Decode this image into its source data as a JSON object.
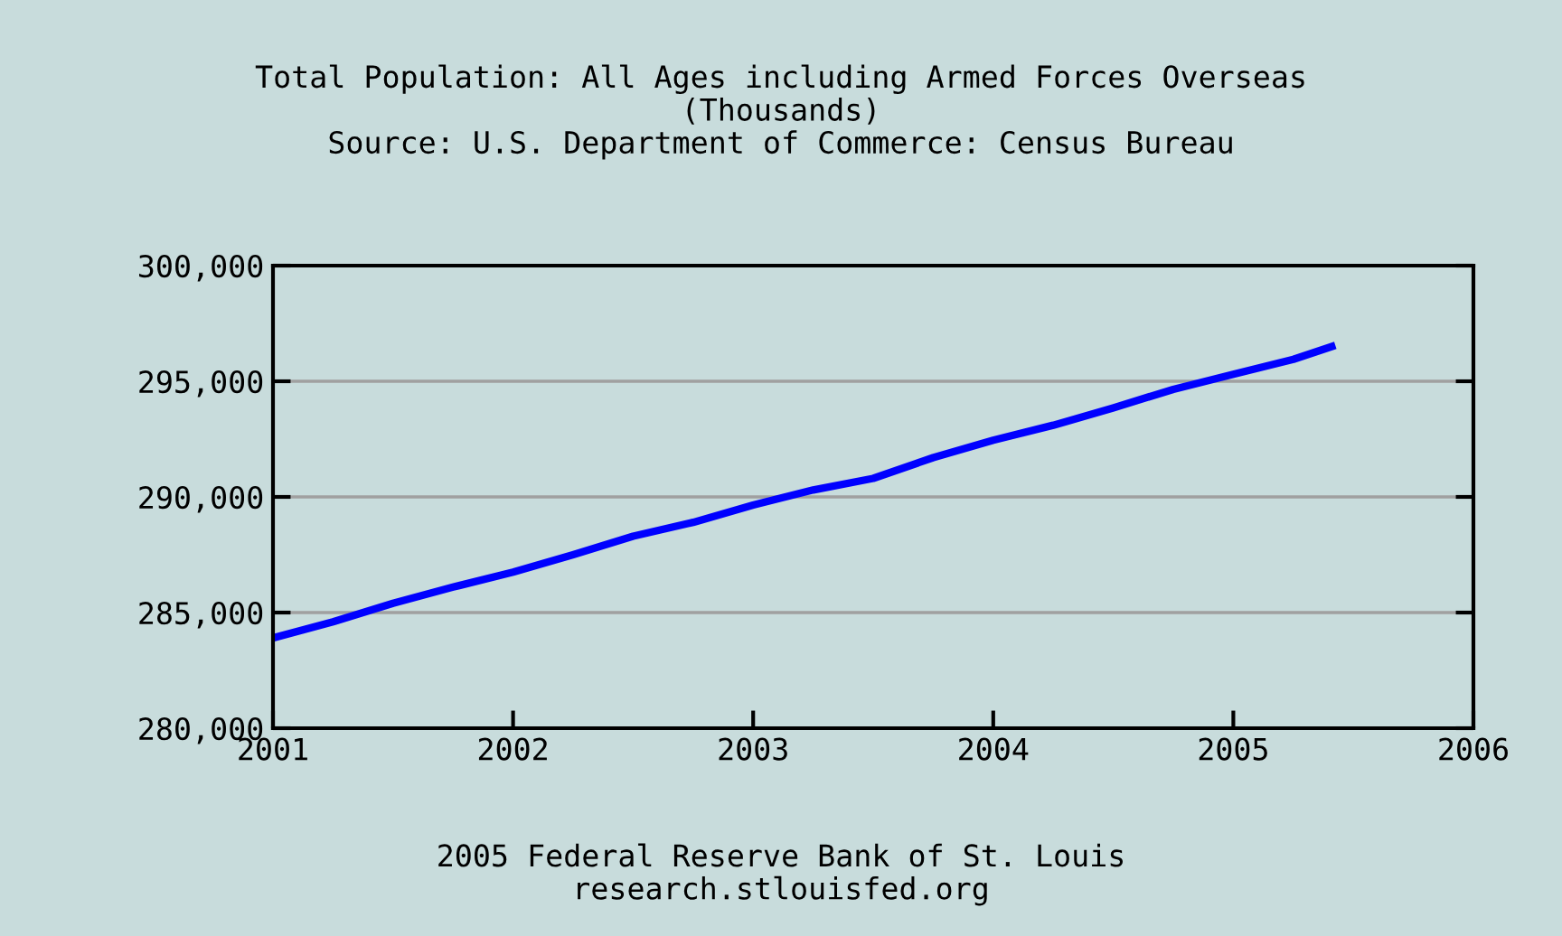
{
  "chart_data": {
    "type": "line",
    "title": "Total Population: All Ages including Armed Forces Overseas\n(Thousands)\nSource: U.S. Department of Commerce: Census Bureau",
    "x": [
      2001.0,
      2001.25,
      2001.5,
      2001.75,
      2002.0,
      2002.25,
      2002.5,
      2002.75,
      2003.0,
      2003.25,
      2003.5,
      2003.75,
      2004.0,
      2004.25,
      2004.5,
      2004.75,
      2005.0,
      2005.25,
      2005.41
    ],
    "series": [
      {
        "color": "#0000ff",
        "values": [
          283900,
          284600,
          285400,
          286100,
          286750,
          287500,
          288300,
          288900,
          289650,
          290300,
          290800,
          291700,
          292450,
          293100,
          293850,
          294650,
          295300,
          295950,
          296500
        ]
      }
    ],
    "xlim": [
      2001,
      2006
    ],
    "xticks": [
      2001,
      2002,
      2003,
      2004,
      2005,
      2006
    ],
    "ylim": [
      280000,
      300000
    ],
    "yticks": [
      {
        "value": 280000,
        "label": "280,000"
      },
      {
        "value": 285000,
        "label": "285,000"
      },
      {
        "value": 290000,
        "label": "290,000"
      },
      {
        "value": 295000,
        "label": "295,000"
      },
      {
        "value": 300000,
        "label": "300,000"
      }
    ],
    "grid": "y",
    "marker": "none",
    "line_style": "solid",
    "annotations": [
      "2005 Federal Reserve Bank of St. Louis\nresearch.stlouisfed.org"
    ]
  }
}
